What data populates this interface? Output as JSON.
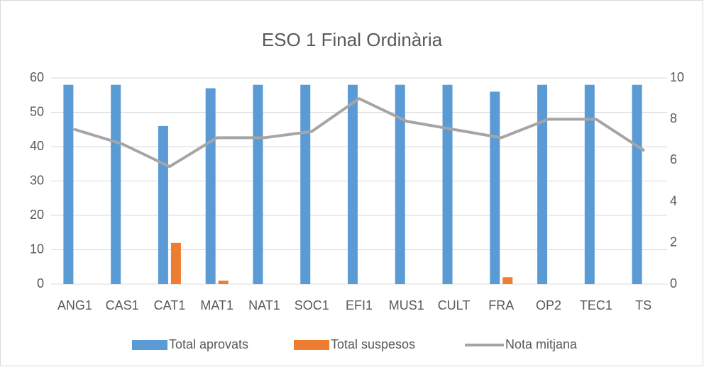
{
  "chart_data": {
    "type": "bar",
    "title": "ESO 1 Final Ordinària",
    "categories": [
      "ANG1",
      "CAS1",
      "CAT1",
      "MAT1",
      "NAT1",
      "SOC1",
      "EFI1",
      "MUS1",
      "CULT",
      "FRA",
      "OP2",
      "TEC1",
      "TS"
    ],
    "series": [
      {
        "name": "Total aprovats",
        "color": "#5b9bd5",
        "values": [
          58,
          58,
          46,
          57,
          58,
          58,
          58,
          58,
          58,
          56,
          58,
          58,
          58
        ]
      },
      {
        "name": "Total suspesos",
        "color": "#ed7d31",
        "values": [
          0,
          0,
          12,
          1,
          0,
          0,
          0,
          0,
          0,
          2,
          0,
          0,
          0
        ]
      },
      {
        "name": "Nota mitjana",
        "color": "#a5a5a5",
        "type": "line",
        "axis": "y2",
        "values": [
          7.5,
          6.8,
          5.7,
          7.1,
          7.1,
          7.4,
          9.0,
          7.9,
          7.5,
          7.1,
          8.0,
          8.0,
          6.5
        ]
      }
    ],
    "ylim": [
      0,
      60
    ],
    "yticks": [
      0,
      10,
      20,
      30,
      40,
      50,
      60
    ],
    "y2lim": [
      0,
      10
    ],
    "y2ticks": [
      0,
      2,
      4,
      6,
      8,
      10
    ],
    "grid": true,
    "legend": "bottom"
  }
}
